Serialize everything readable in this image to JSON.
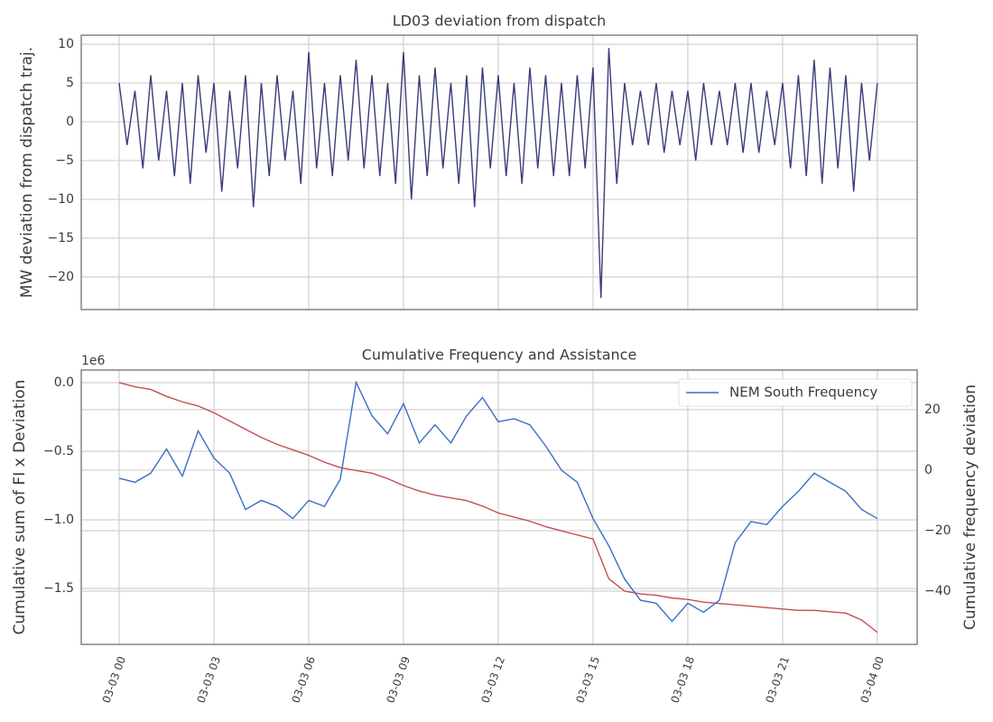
{
  "chart_data": [
    {
      "type": "line",
      "title": "LD03 deviation from dispatch",
      "ylabel": "MW deviation from dispatch traj.",
      "x": [
        0,
        0.25,
        0.5,
        0.75,
        1,
        1.25,
        1.5,
        1.75,
        2,
        2.25,
        2.5,
        2.75,
        3,
        3.25,
        3.5,
        3.75,
        4,
        4.25,
        4.5,
        4.75,
        5,
        5.25,
        5.5,
        5.75,
        6,
        6.25,
        6.5,
        6.75,
        7,
        7.25,
        7.5,
        7.75,
        8,
        8.25,
        8.5,
        8.75,
        9,
        9.25,
        9.5,
        9.75,
        10,
        10.25,
        10.5,
        10.75,
        11,
        11.25,
        11.5,
        11.75,
        12,
        12.25,
        12.5,
        12.75,
        13,
        13.25,
        13.5,
        13.75,
        14,
        14.25,
        14.5,
        14.75,
        15,
        15.25,
        15.5,
        15.75,
        16,
        16.25,
        16.5,
        16.75,
        17,
        17.25,
        17.5,
        17.75,
        18,
        18.25,
        18.5,
        18.75,
        19,
        19.25,
        19.5,
        19.75,
        20,
        20.25,
        20.5,
        20.75,
        21,
        21.25,
        21.5,
        21.75,
        22,
        22.25,
        22.5,
        22.75,
        23,
        23.25,
        23.5,
        23.75,
        24
      ],
      "series": [
        {
          "color": "#383d7a",
          "values": [
            5,
            -3,
            4,
            -6,
            6,
            -5,
            4,
            -7,
            5,
            -8,
            6,
            -4,
            5,
            -9,
            4,
            -6,
            6,
            -11,
            5,
            -7,
            6,
            -5,
            4,
            -8,
            9,
            -6,
            5,
            -7,
            6,
            -5,
            8,
            -6,
            6,
            -7,
            5,
            -8,
            9,
            -10,
            6,
            -7,
            7,
            -6,
            5,
            -8,
            6,
            -11,
            7,
            -6,
            6,
            -7,
            5,
            -8,
            7,
            -6,
            6,
            -7,
            5,
            -7,
            6,
            -6,
            7,
            -22.7,
            9.5,
            -8,
            5,
            -3,
            4,
            -3,
            5,
            -4,
            4,
            -3,
            4,
            -5,
            5,
            -3,
            4,
            -3,
            5,
            -4,
            5,
            -4,
            4,
            -3,
            5,
            -6,
            6,
            -7,
            8,
            -8,
            7,
            -6,
            6,
            -9,
            5,
            -5,
            5
          ]
        }
      ],
      "xlim": [
        -1.2,
        25.26
      ],
      "xticks": [
        0,
        3,
        6,
        9,
        12,
        15,
        18,
        21,
        24
      ],
      "ylim": [
        -24.2,
        11.16
      ],
      "yticks": [
        {
          "value": -20,
          "label": "−20"
        },
        {
          "value": -15,
          "label": "−15"
        },
        {
          "value": -10,
          "label": "−10"
        },
        {
          "value": -5,
          "label": "−5"
        },
        0,
        5,
        10
      ],
      "grid": true
    },
    {
      "type": "line",
      "title": "Cumulative Frequency and Assistance",
      "ylabel": "Cumulative sum of FI x Deviation",
      "y2label": "Cumulative frequency deviation",
      "offset_label": "1e6",
      "x": [
        0,
        0.5,
        1,
        1.5,
        2,
        2.5,
        3,
        3.5,
        4,
        4.5,
        5,
        5.5,
        6,
        6.5,
        7,
        7.5,
        8,
        8.5,
        9,
        9.5,
        10,
        10.5,
        11,
        11.5,
        12,
        12.5,
        13,
        13.5,
        14,
        14.5,
        15,
        15.5,
        16,
        16.5,
        17,
        17.5,
        18,
        18.5,
        19,
        19.5,
        20,
        20.5,
        21,
        21.5,
        22,
        22.5,
        23,
        23.5,
        24
      ],
      "series": [
        {
          "color": "#c44e52",
          "values": [
            0,
            -0.03,
            -0.05,
            -0.1,
            -0.14,
            -0.17,
            -0.22,
            -0.28,
            -0.34,
            -0.4,
            -0.45,
            -0.49,
            -0.53,
            -0.58,
            -0.62,
            -0.64,
            -0.66,
            -0.7,
            -0.75,
            -0.79,
            -0.82,
            -0.84,
            -0.86,
            -0.9,
            -0.95,
            -0.98,
            -1.01,
            -1.05,
            -1.08,
            -1.11,
            -1.14,
            -1.43,
            -1.52,
            -1.54,
            -1.55,
            -1.57,
            -1.58,
            -1.6,
            -1.61,
            -1.62,
            -1.63,
            -1.64,
            -1.65,
            -1.66,
            -1.66,
            -1.67,
            -1.68,
            -1.73,
            -1.82
          ]
        },
        {
          "name": "NEM South Frequency",
          "color": "#3a6fc4",
          "axis": "y2",
          "values": [
            -2.7,
            -4,
            -1,
            7,
            -2,
            13,
            4,
            -1,
            -13,
            -10,
            -12,
            -16,
            -10,
            -12,
            -3,
            29,
            18,
            12,
            22,
            9,
            15,
            9,
            18,
            24,
            16,
            17,
            15,
            8,
            0,
            -4,
            -16,
            -25,
            -36,
            -43,
            -44,
            -50,
            -44,
            -47,
            -43,
            -24,
            -17,
            -18,
            -12,
            -7,
            -1,
            -4,
            -7,
            -13,
            -16
          ]
        }
      ],
      "xlim": [
        -1.2,
        25.26
      ],
      "xticks": [
        {
          "value": 0,
          "label": "03-03 00"
        },
        {
          "value": 3,
          "label": "03-03 03"
        },
        {
          "value": 6,
          "label": "03-03 06"
        },
        {
          "value": 9,
          "label": "03-03 09"
        },
        {
          "value": 12,
          "label": "03-03 12"
        },
        {
          "value": 15,
          "label": "03-03 15"
        },
        {
          "value": 18,
          "label": "03-03 18"
        },
        {
          "value": 21,
          "label": "03-03 21"
        },
        {
          "value": 24,
          "label": "03-04 00"
        }
      ],
      "ylim": [
        -1.908,
        0.092
      ],
      "yticks": [
        {
          "value": -1.5,
          "label": "−1.5"
        },
        {
          "value": -1.0,
          "label": "−1.0"
        },
        {
          "value": -0.5,
          "label": "−0.5"
        },
        {
          "value": 0,
          "label": "0.0"
        }
      ],
      "y2lim": [
        -57.6,
        33.1
      ],
      "y2ticks": [
        {
          "value": -40,
          "label": "−40"
        },
        {
          "value": -20,
          "label": "−20"
        },
        0,
        20
      ],
      "grid": true,
      "legend": "upper right"
    }
  ]
}
